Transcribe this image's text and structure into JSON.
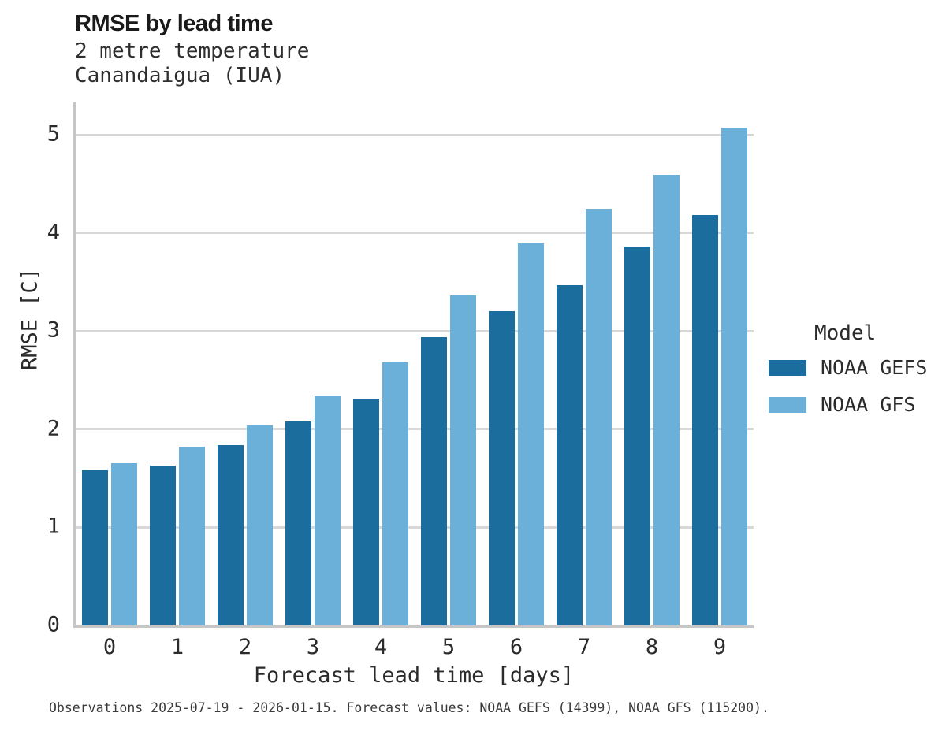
{
  "title": "RMSE by lead time",
  "subtitle_line1": "2 metre temperature",
  "subtitle_line2": "Canandaigua (IUA)",
  "footer": "Observations 2025-07-19 - 2026-01-15. Forecast values: NOAA GEFS (14399), NOAA GFS (115200).",
  "legend": {
    "title": "Model",
    "items": [
      {
        "label": "NOAA GEFS",
        "color": "#1a6d9d"
      },
      {
        "label": "NOAA GFS",
        "color": "#6bb0d8"
      }
    ]
  },
  "colors": {
    "gefs_bar": "#1a6d9d",
    "gfs_bar": "#6bb0d8",
    "gridline": "#d8d8d8",
    "axis_spine": "#c6c6c6"
  },
  "chart_data": {
    "type": "bar",
    "title": "RMSE by lead time",
    "subtitle": "2 metre temperature — Canandaigua (IUA)",
    "categories": [
      "0",
      "1",
      "2",
      "3",
      "4",
      "5",
      "6",
      "7",
      "8",
      "9"
    ],
    "series": [
      {
        "name": "NOAA GEFS",
        "color": "#1a6d9d",
        "values": [
          1.58,
          1.63,
          1.84,
          2.08,
          2.31,
          2.94,
          3.2,
          3.47,
          3.86,
          4.18
        ]
      },
      {
        "name": "NOAA GFS",
        "color": "#6bb0d8",
        "values": [
          1.65,
          1.82,
          2.04,
          2.34,
          2.68,
          3.36,
          3.89,
          4.25,
          4.59,
          5.07
        ]
      }
    ],
    "xlabel": "Forecast lead time [days]",
    "ylabel": "RMSE [C]",
    "ylim": [
      0,
      5.33
    ],
    "yticks": [
      0,
      1,
      2,
      3,
      4,
      5
    ],
    "grid": true,
    "legend_title": "Model",
    "legend_position": "right"
  }
}
